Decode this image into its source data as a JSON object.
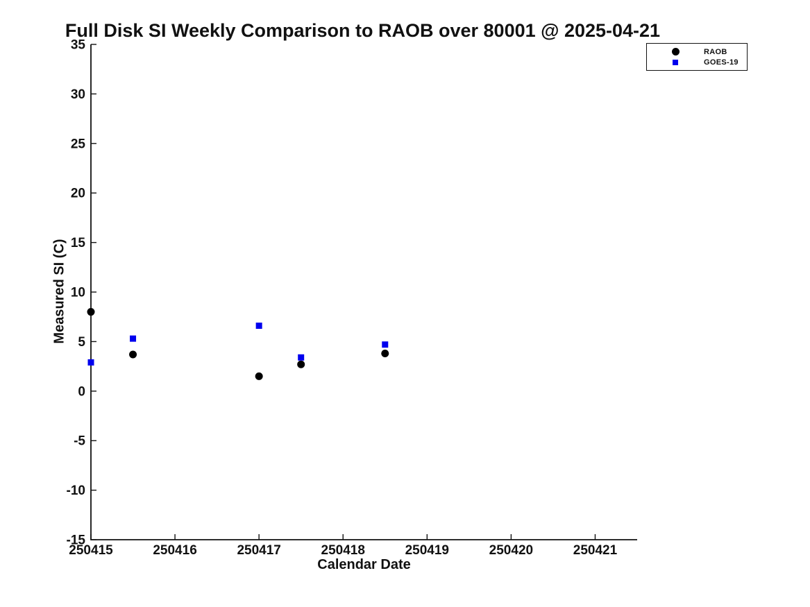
{
  "figure": {
    "background": "#ffffff"
  },
  "chart_data": {
    "type": "scatter",
    "title": "Full Disk SI Weekly Comparison to RAOB over 80001 @ 2025-04-21",
    "xlabel": "Calendar Date",
    "ylabel": "Measured SI (C)",
    "xlim": [
      250415,
      250421.5
    ],
    "ylim": [
      -15,
      35
    ],
    "xticks": [
      250415,
      250416,
      250417,
      250418,
      250419,
      250420,
      250421
    ],
    "yticks": [
      35,
      30,
      25,
      20,
      15,
      10,
      5,
      0,
      -5,
      -10,
      -15
    ],
    "grid": false,
    "legend_position": "top-right",
    "axis_color": "#111111",
    "x": [
      250415,
      250415.5,
      250417,
      250417.5,
      250418.5
    ],
    "series": [
      {
        "name": "RAOB",
        "marker": "circle",
        "color": "#000000",
        "values": [
          8.0,
          3.7,
          1.5,
          2.7,
          3.8
        ]
      },
      {
        "name": "GOES-19",
        "marker": "square",
        "color": "#0000ee",
        "values": [
          2.9,
          5.3,
          6.6,
          3.4,
          4.7
        ]
      }
    ]
  }
}
